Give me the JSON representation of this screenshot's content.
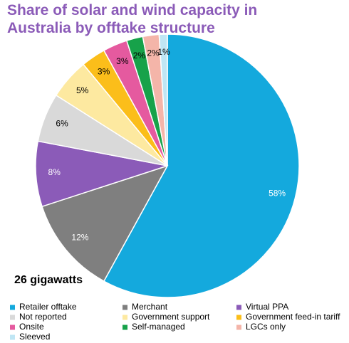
{
  "chart_data": {
    "type": "pie",
    "title": "Share of solar and wind capacity in Australia by offtake structure",
    "annotation": "26 gigawatts",
    "categories": [
      "Retailer offtake",
      "Merchant",
      "Virtual PPA",
      "Not reported",
      "Government support",
      "Government feed-in tariff",
      "Onsite",
      "Self-managed",
      "LGCs only",
      "Sleeved"
    ],
    "values": [
      58,
      12,
      8,
      6,
      5,
      3,
      3,
      2,
      2,
      1
    ],
    "value_labels": [
      "58%",
      "12%",
      "8%",
      "6%",
      "5%",
      "3%",
      "3%",
      "2%",
      "2%",
      "1%"
    ],
    "colors": [
      "#14a9dd",
      "#7f7f7f",
      "#8b5bb8",
      "#d9d9d9",
      "#fde9a0",
      "#fbbe1a",
      "#e55a9f",
      "#17a24a",
      "#f4b5a9",
      "#bfe6f4"
    ],
    "label_colors": [
      "#ffffff",
      "#ffffff",
      "#ffffff",
      "#000000",
      "#000000",
      "#000000",
      "#000000",
      "#000000",
      "#000000",
      "#000000"
    ],
    "legend": "bottom"
  }
}
